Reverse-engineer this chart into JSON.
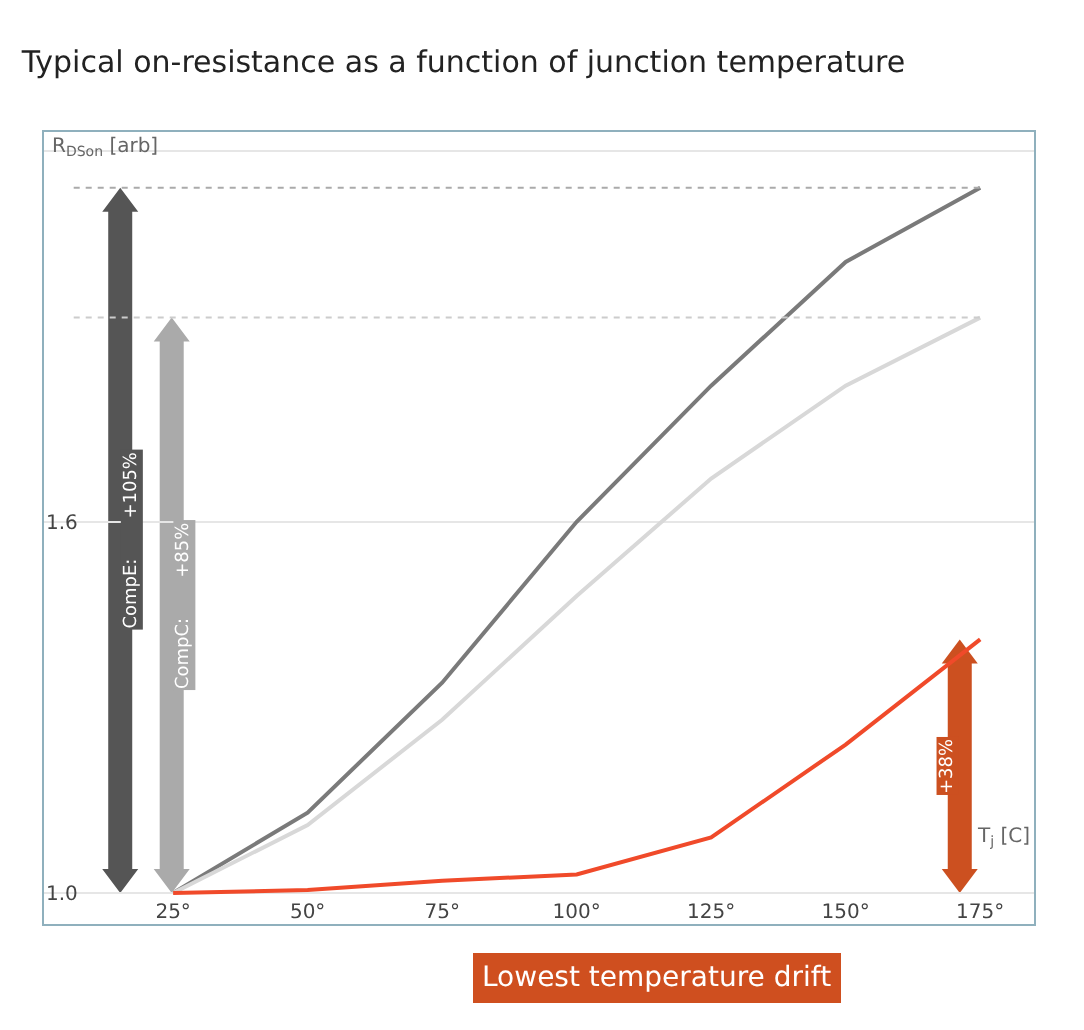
{
  "chart_data": {
    "type": "line",
    "title": "Typical on-resistance as a function of junction temperature",
    "xlabel": "T$_{j}$ [C]",
    "ylabel": "R$_{DSon}$ [arb]",
    "x": [
      25,
      50,
      75,
      100,
      125,
      150,
      175
    ],
    "series": [
      {
        "color": "#7a7a7a",
        "values": [
          1.0,
          1.13,
          1.34,
          1.6,
          1.82,
          2.02,
          2.14
        ]
      },
      {
        "color": "#d8d8d8",
        "values": [
          1.0,
          1.11,
          1.28,
          1.48,
          1.67,
          1.82,
          1.93
        ]
      },
      {
        "color": "#f04a2a",
        "values": [
          1.0,
          1.005,
          1.02,
          1.03,
          1.09,
          1.24,
          1.41
        ]
      }
    ],
    "xlim": [
      1,
      185
    ],
    "ylim": [
      0.95,
      2.23
    ],
    "xticks": [
      {
        "value": 25,
        "label": "25°"
      },
      {
        "value": 50,
        "label": "50°"
      },
      {
        "value": 75,
        "label": "75°"
      },
      {
        "value": 100,
        "label": "100°"
      },
      {
        "value": 125,
        "label": "125°"
      },
      {
        "value": 150,
        "label": "150°"
      },
      {
        "value": 175,
        "label": "175°"
      }
    ],
    "yticks": [
      {
        "value": 1.0,
        "label": "1.0"
      },
      1.6,
      {
        "value": 2.2,
        "label": null
      }
    ],
    "ref_lines": [
      {
        "axis": "y",
        "value": 2.14,
        "color": "#aaaaaa",
        "line_style": "dotted"
      },
      {
        "axis": "y",
        "value": 1.93,
        "color": "#cccccc",
        "line_style": "dotted"
      }
    ],
    "annotations": [
      "CompE:       +105%",
      "CompC:       +85%",
      "+38%",
      "Lowest temperature drift"
    ],
    "grid": "y",
    "marker": "none",
    "line_style": "solid"
  }
}
